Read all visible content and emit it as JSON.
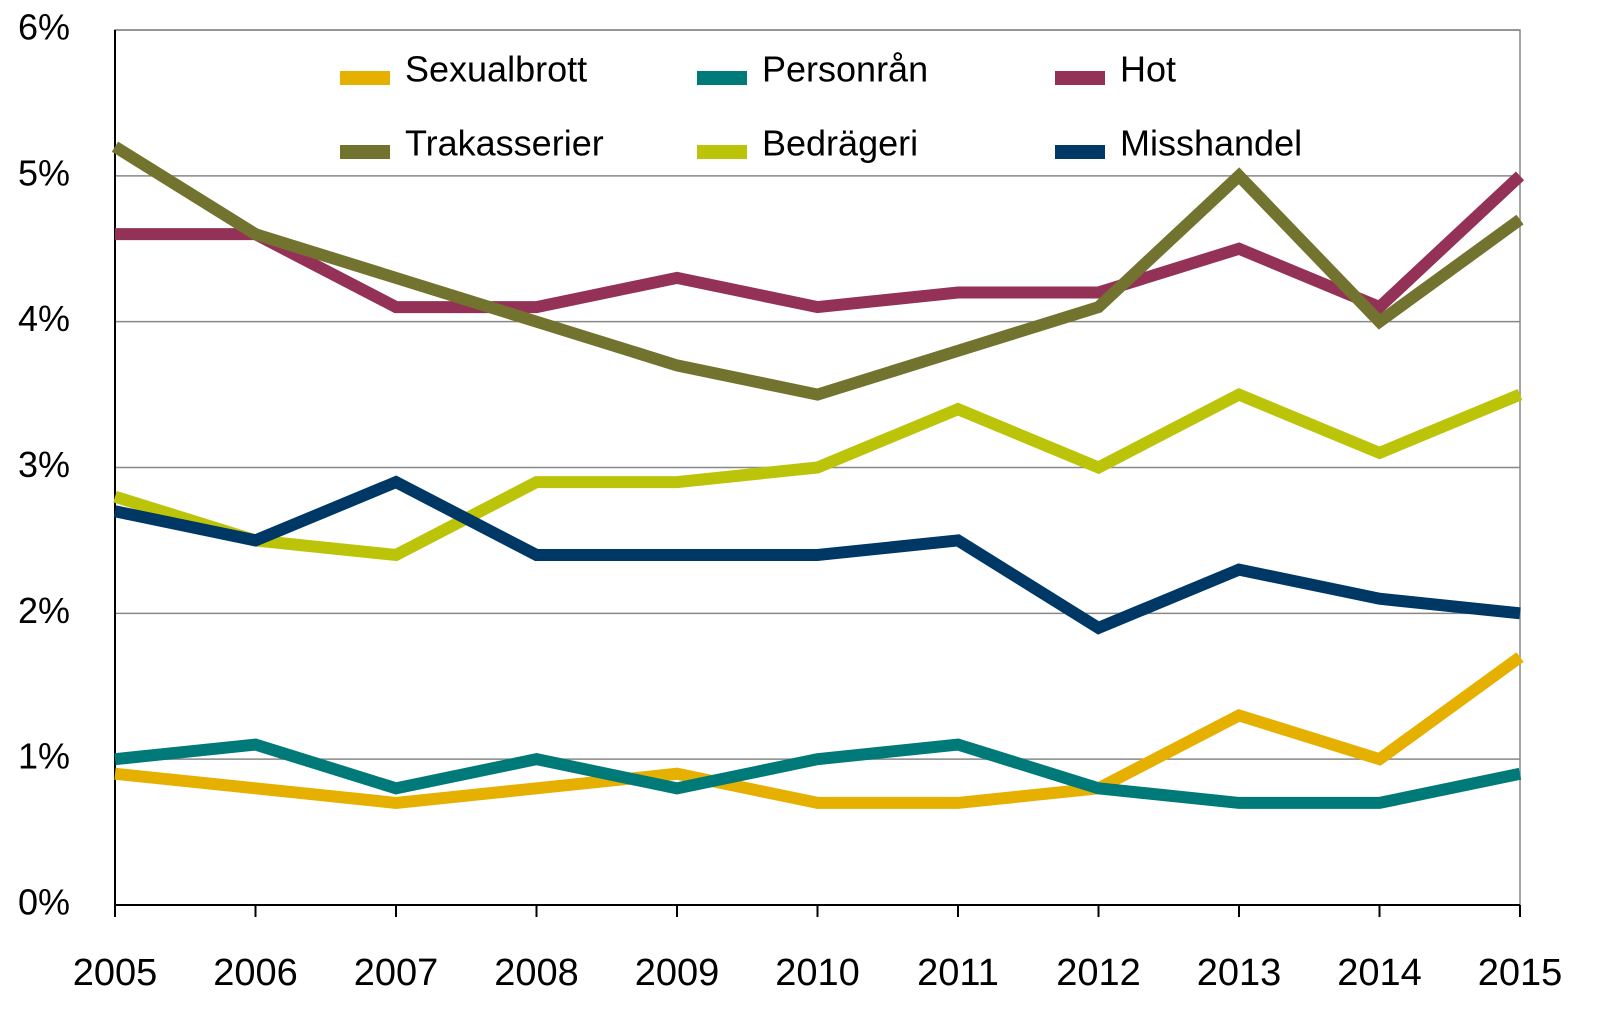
{
  "chart_data": {
    "type": "line",
    "categories": [
      "2005",
      "2006",
      "2007",
      "2008",
      "2009",
      "2010",
      "2011",
      "2012",
      "2013",
      "2014",
      "2015"
    ],
    "series": [
      {
        "name": "Sexualbrott",
        "color": "#e6b000",
        "values": [
          0.9,
          0.8,
          0.7,
          0.8,
          0.9,
          0.7,
          0.7,
          0.8,
          1.3,
          1.0,
          1.7
        ]
      },
      {
        "name": "Personrån",
        "color": "#007a78",
        "values": [
          1.0,
          1.1,
          0.8,
          1.0,
          0.8,
          1.0,
          1.1,
          0.8,
          0.7,
          0.7,
          0.9
        ]
      },
      {
        "name": "Hot",
        "color": "#943156",
        "values": [
          4.6,
          4.6,
          4.1,
          4.1,
          4.3,
          4.1,
          4.2,
          4.2,
          4.5,
          4.1,
          5.0
        ]
      },
      {
        "name": "Trakasserier",
        "color": "#737330",
        "values": [
          5.2,
          4.6,
          4.3,
          4.0,
          3.7,
          3.5,
          3.8,
          4.1,
          5.0,
          4.0,
          4.7
        ]
      },
      {
        "name": "Bedrägeri",
        "color": "#bcc40a",
        "values": [
          2.8,
          2.5,
          2.4,
          2.9,
          2.9,
          3.0,
          3.4,
          3.0,
          3.5,
          3.1,
          3.5
        ]
      },
      {
        "name": "Misshandel",
        "color": "#003865",
        "values": [
          2.7,
          2.5,
          2.9,
          2.4,
          2.4,
          2.4,
          2.5,
          1.9,
          2.3,
          2.1,
          2.0
        ]
      }
    ],
    "ylim": [
      0,
      6
    ],
    "yticks": [
      {
        "value": 0,
        "label": "0%"
      },
      {
        "value": 1,
        "label": "1%"
      },
      {
        "value": 2,
        "label": "2%"
      },
      {
        "value": 3,
        "label": "3%"
      },
      {
        "value": 4,
        "label": "4%"
      },
      {
        "value": 5,
        "label": "5%"
      },
      {
        "value": 6,
        "label": "6%"
      }
    ],
    "grid": true
  }
}
